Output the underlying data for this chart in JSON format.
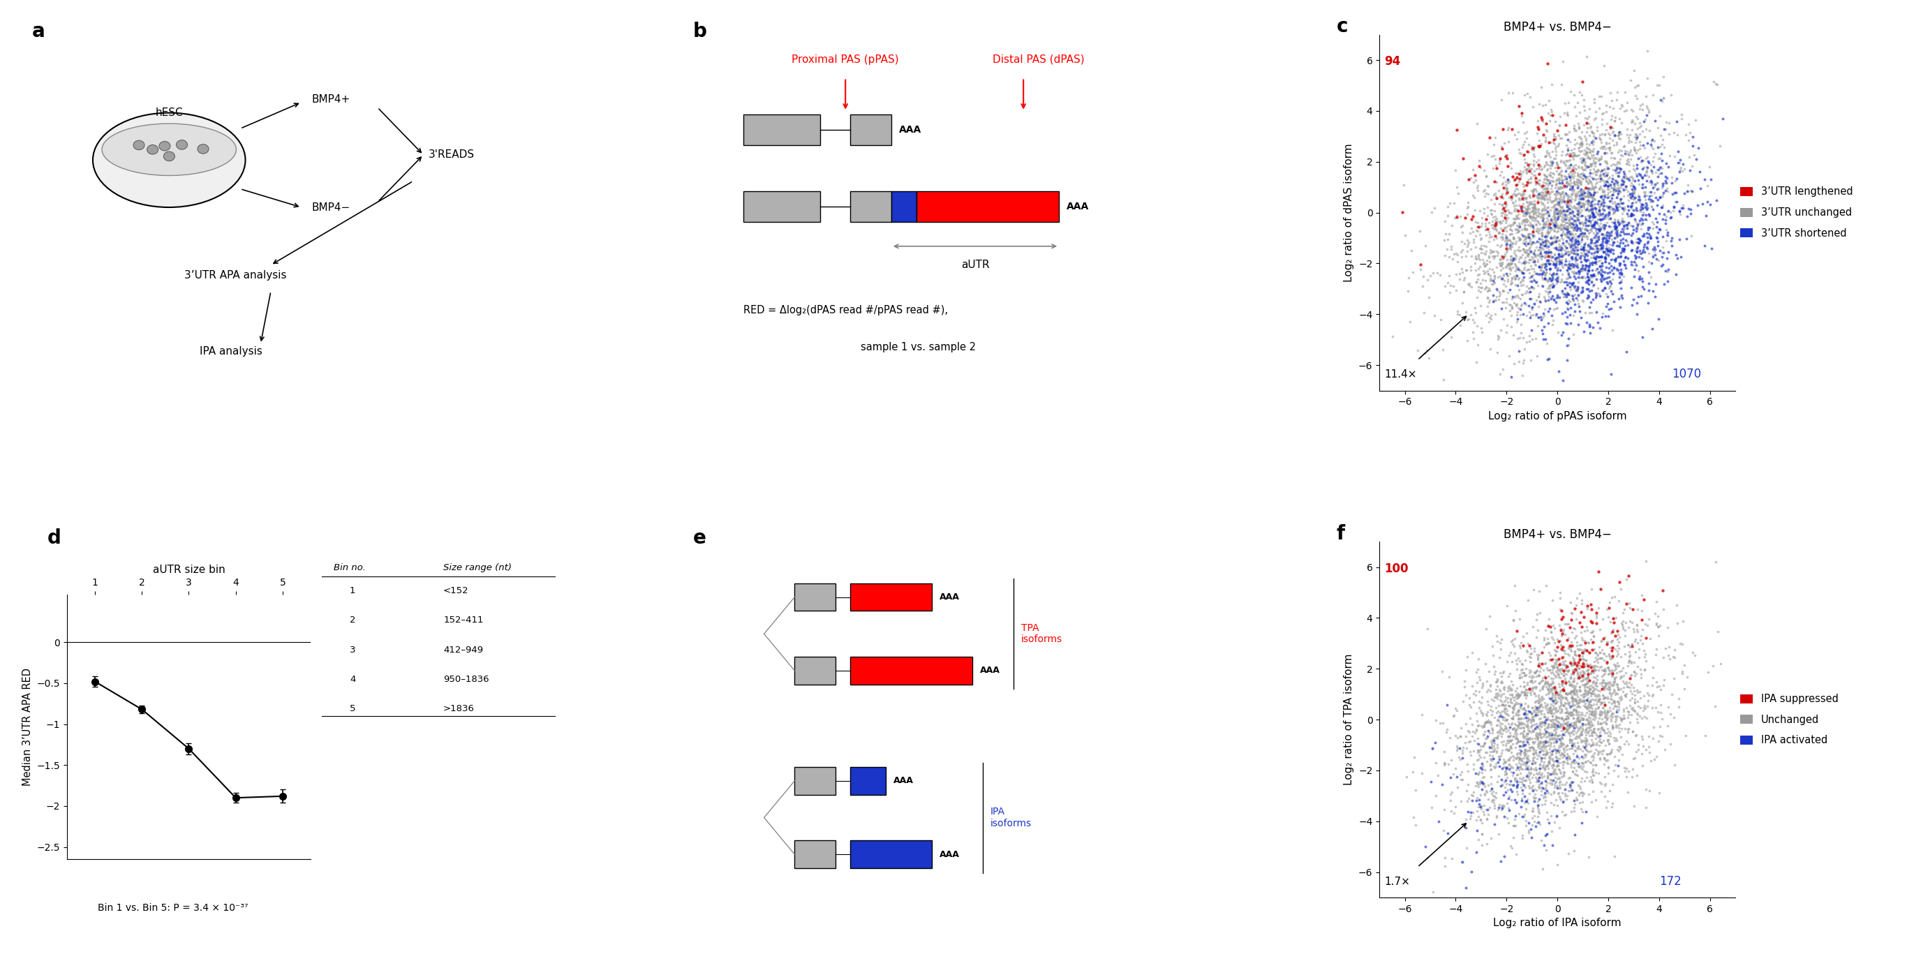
{
  "panel_d": {
    "x": [
      1,
      2,
      3,
      4,
      5
    ],
    "y": [
      -0.48,
      -0.82,
      -1.3,
      -1.9,
      -1.88
    ],
    "yerr": [
      0.06,
      0.05,
      0.07,
      0.06,
      0.08
    ],
    "xlabel_top": "aUTR size bin",
    "ylabel": "Median 3’UTR APA RED",
    "xticks": [
      1,
      2,
      3,
      4,
      5
    ],
    "yticks": [
      0,
      -0.5,
      -1.0,
      -1.5,
      -2.0,
      -2.5
    ],
    "ylim": [
      -2.65,
      0.55
    ],
    "pval_text": "Bin 1 vs. Bin 5: P = 3.4 × 10⁻³⁷",
    "bin_table": {
      "bin_no": [
        1,
        2,
        3,
        4,
        5
      ],
      "size_range": [
        "<152",
        "152–411",
        "412–949",
        "950–1836",
        ">1836"
      ]
    }
  },
  "panel_c": {
    "title": "BMP4+ vs. BMP4−",
    "xlabel": "Log₂ ratio of pPAS isoform",
    "ylabel": "Log₂ ratio of dPAS isoform",
    "xlim": [
      -7,
      7
    ],
    "ylim": [
      -7,
      7
    ],
    "xticks": [
      -6,
      -4,
      -2,
      0,
      2,
      4,
      6
    ],
    "yticks": [
      -6,
      -4,
      -2,
      0,
      2,
      4,
      6
    ],
    "count_red": "94",
    "count_blue": "1070",
    "fold_text": "11.4×",
    "legend": [
      "3’UTR lengthened",
      "3’UTR unchanged",
      "3’UTR shortened"
    ],
    "colors": [
      "#d40000",
      "#999999",
      "#1a35c8"
    ]
  },
  "panel_f": {
    "title": "BMP4+ vs. BMP4−",
    "xlabel": "Log₂ ratio of IPA isoform",
    "ylabel": "Log₂ ratio of TPA isoform",
    "xlim": [
      -7,
      7
    ],
    "ylim": [
      -7,
      7
    ],
    "xticks": [
      -6,
      -4,
      -2,
      0,
      2,
      4,
      6
    ],
    "yticks": [
      -6,
      -4,
      -2,
      0,
      2,
      4,
      6
    ],
    "count_red": "100",
    "count_blue": "172",
    "fold_text": "1.7×",
    "legend": [
      "IPA suppressed",
      "Unchanged",
      "IPA activated"
    ],
    "colors": [
      "#d40000",
      "#999999",
      "#1a35c8"
    ]
  },
  "n_gray": 3000,
  "n_red_c": 94,
  "n_blue_c": 1070,
  "n_red_f": 100,
  "n_blue_f": 172
}
